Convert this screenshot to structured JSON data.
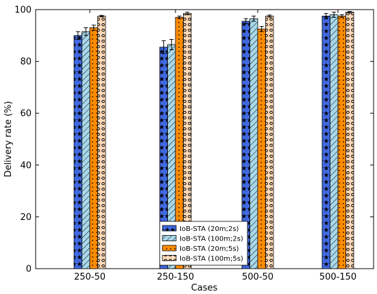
{
  "chart_data": {
    "type": "bar",
    "xlabel": "Cases",
    "ylabel": "Delivery rate (%)",
    "categories": [
      "250-50",
      "250-150",
      "500-50",
      "500-150"
    ],
    "ylim": [
      0,
      100
    ],
    "yticks": [
      0,
      20,
      40,
      60,
      80,
      100
    ],
    "legend_position": "bottom-center",
    "grid": false,
    "error_bars": true,
    "series": [
      {
        "name": "IoB-STA (20m;2s)",
        "values": [
          90.0,
          85.5,
          95.5,
          97.5
        ],
        "errors": [
          1.5,
          2.5,
          1.0,
          1.0
        ],
        "color": "#4169e1",
        "pattern": "stars"
      },
      {
        "name": "IoB-STA (100m;2s)",
        "values": [
          91.5,
          86.5,
          96.5,
          98.0
        ],
        "errors": [
          1.5,
          2.0,
          1.0,
          1.0
        ],
        "color": "#a8d8ea",
        "pattern": "hatch"
      },
      {
        "name": "IoB-STA (20m;5s)",
        "values": [
          93.0,
          97.0,
          92.5,
          97.5
        ],
        "errors": [
          1.0,
          0.5,
          1.0,
          0.5
        ],
        "color": "#ff8c00",
        "pattern": "dots"
      },
      {
        "name": "IoB-STA (100m;5s)",
        "values": [
          97.5,
          98.5,
          97.5,
          99.0
        ],
        "errors": [
          0.3,
          0.5,
          0.4,
          0.3
        ],
        "color": "#ffdab9",
        "pattern": "circles"
      }
    ]
  }
}
